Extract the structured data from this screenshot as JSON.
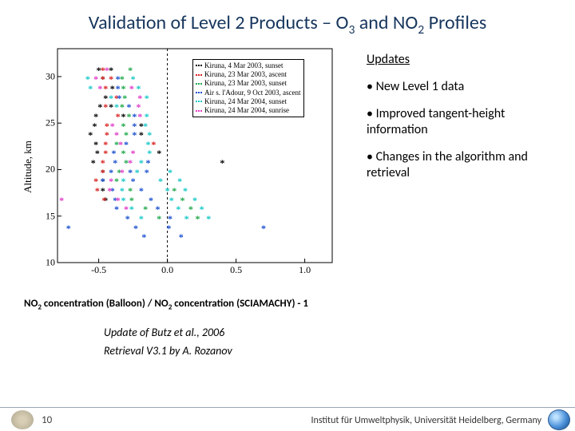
{
  "title_parts": {
    "a": "Validation of Level 2 Products – O",
    "b": "3",
    "c": " and NO",
    "d": "2",
    "e": " Profiles"
  },
  "chart": {
    "type": "scatter",
    "marker": "asterisk",
    "xlim": [
      -0.8,
      1.2
    ],
    "ylim": [
      10,
      33
    ],
    "xtick_values": [
      -0.5,
      0.0,
      0.5,
      1.0
    ],
    "xtick_labels": [
      "-0.5",
      "0.0",
      "0.5",
      "1.0"
    ],
    "ytick_values": [
      10,
      15,
      20,
      25,
      30
    ],
    "ytick_labels": [
      "10",
      "15",
      "20",
      "25",
      "30"
    ],
    "y_label": "Altitude, km",
    "background_color": "#ffffff",
    "axis_color": "#000000",
    "zero_line_color": "#000000",
    "zero_line_dash": "3,3",
    "legend": [
      {
        "colors": [
          "#000000",
          "#000000",
          "#000000"
        ],
        "label": "Kiruna, 4 Mar 2003, sunset"
      },
      {
        "colors": [
          "#d8211f",
          "#d8211f",
          "#d8211f"
        ],
        "label": "Kiruna, 23 Mar 2003, ascent"
      },
      {
        "colors": [
          "#1fa84a",
          "#1fa84a",
          "#1fa84a"
        ],
        "label": "Kiruna, 23 Mar 2003, sunset"
      },
      {
        "colors": [
          "#1a4fd0",
          "#1a4fd0",
          "#1a4fd0"
        ],
        "label": "Air s. l'Adour, 9 Oct 2003, ascent"
      },
      {
        "colors": [
          "#18c8c8",
          "#18c8c8",
          "#18c8c8"
        ],
        "label": "Kiruna, 24 Mar 2004, sunset"
      },
      {
        "colors": [
          "#e03bc8",
          "#e03bc8",
          "#e03bc8"
        ],
        "label": "Kiruna, 24 Mar 2004, sunrise"
      }
    ],
    "points": {
      "black": [
        {
          "x": -0.5,
          "y": 30.7
        },
        {
          "x": -0.41,
          "y": 30.7
        },
        {
          "x": -0.47,
          "y": 29.7
        },
        {
          "x": -0.4,
          "y": 28.7
        },
        {
          "x": -0.45,
          "y": 27.7
        },
        {
          "x": -0.49,
          "y": 26.7
        },
        {
          "x": -0.41,
          "y": 26.7
        },
        {
          "x": -0.52,
          "y": 25.7
        },
        {
          "x": -0.32,
          "y": 25.7
        },
        {
          "x": -0.53,
          "y": 24.7
        },
        {
          "x": -0.19,
          "y": 24.7
        },
        {
          "x": -0.56,
          "y": 23.7
        },
        {
          "x": -0.19,
          "y": 23.7
        },
        {
          "x": -0.52,
          "y": 22.7
        },
        {
          "x": -0.51,
          "y": 21.7
        },
        {
          "x": -0.06,
          "y": 21.7
        },
        {
          "x": -0.54,
          "y": 20.7
        },
        {
          "x": 0.4,
          "y": 20.7
        },
        {
          "x": -0.47,
          "y": 19.7
        },
        {
          "x": -0.47,
          "y": 18.7
        },
        {
          "x": -0.47,
          "y": 17.7
        },
        {
          "x": -0.45,
          "y": 16.7
        }
      ],
      "red": [
        {
          "x": -0.47,
          "y": 30.7
        },
        {
          "x": -0.47,
          "y": 29.7
        },
        {
          "x": -0.41,
          "y": 29.7
        },
        {
          "x": -0.45,
          "y": 28.7
        },
        {
          "x": -0.37,
          "y": 27.7
        },
        {
          "x": -0.45,
          "y": 26.7
        },
        {
          "x": -0.36,
          "y": 25.7
        },
        {
          "x": -0.44,
          "y": 24.7
        },
        {
          "x": -0.44,
          "y": 23.7
        },
        {
          "x": -0.45,
          "y": 22.7
        },
        {
          "x": -0.1,
          "y": 22.7
        },
        {
          "x": -0.45,
          "y": 21.7
        },
        {
          "x": -0.47,
          "y": 20.7
        },
        {
          "x": -0.47,
          "y": 19.7
        },
        {
          "x": -0.52,
          "y": 18.7
        },
        {
          "x": -0.51,
          "y": 17.7
        },
        {
          "x": -0.46,
          "y": 16.7
        }
      ],
      "green": [
        {
          "x": -0.27,
          "y": 30.7
        },
        {
          "x": -0.33,
          "y": 29.7
        },
        {
          "x": -0.32,
          "y": 28.7
        },
        {
          "x": -0.31,
          "y": 27.7
        },
        {
          "x": -0.33,
          "y": 26.7
        },
        {
          "x": -0.28,
          "y": 25.7
        },
        {
          "x": -0.32,
          "y": 24.7
        },
        {
          "x": -0.3,
          "y": 23.7
        },
        {
          "x": -0.37,
          "y": 22.7
        },
        {
          "x": -0.32,
          "y": 21.7
        },
        {
          "x": -0.3,
          "y": 20.7
        },
        {
          "x": -0.35,
          "y": 19.7
        },
        {
          "x": -0.37,
          "y": 18.7
        },
        {
          "x": -0.27,
          "y": 17.7
        },
        {
          "x": 0.05,
          "y": 17.7
        },
        {
          "x": -0.26,
          "y": 16.7
        },
        {
          "x": 0.11,
          "y": 16.7
        },
        {
          "x": -0.16,
          "y": 15.7
        },
        {
          "x": 0.17,
          "y": 15.7
        },
        {
          "x": -0.06,
          "y": 14.7
        },
        {
          "x": 0.22,
          "y": 14.7
        }
      ],
      "blue": [
        {
          "x": -0.36,
          "y": 29.7
        },
        {
          "x": -0.36,
          "y": 28.7
        },
        {
          "x": -0.35,
          "y": 27.7
        },
        {
          "x": -0.28,
          "y": 26.7
        },
        {
          "x": -0.24,
          "y": 25.7
        },
        {
          "x": -0.24,
          "y": 24.7
        },
        {
          "x": -0.24,
          "y": 23.7
        },
        {
          "x": -0.3,
          "y": 22.7
        },
        {
          "x": -0.39,
          "y": 21.7
        },
        {
          "x": -0.38,
          "y": 20.7
        },
        {
          "x": -0.14,
          "y": 20.7
        },
        {
          "x": -0.41,
          "y": 19.7
        },
        {
          "x": -0.27,
          "y": 19.7
        },
        {
          "x": -0.15,
          "y": 19.7
        },
        {
          "x": -0.47,
          "y": 18.7
        },
        {
          "x": -0.25,
          "y": 18.7
        },
        {
          "x": -0.4,
          "y": 17.7
        },
        {
          "x": -0.19,
          "y": 17.7
        },
        {
          "x": -0.38,
          "y": 16.7
        },
        {
          "x": -0.12,
          "y": 16.7
        },
        {
          "x": -0.37,
          "y": 15.7
        },
        {
          "x": -0.07,
          "y": 15.7
        },
        {
          "x": -0.29,
          "y": 14.7
        },
        {
          "x": 0.02,
          "y": 14.7
        },
        {
          "x": -0.72,
          "y": 13.7
        },
        {
          "x": -0.23,
          "y": 13.7
        },
        {
          "x": 0.01,
          "y": 13.7
        },
        {
          "x": 0.7,
          "y": 13.7
        },
        {
          "x": -0.17,
          "y": 12.7
        },
        {
          "x": 0.1,
          "y": 12.7
        }
      ],
      "cyan": [
        {
          "x": -0.58,
          "y": 29.7
        },
        {
          "x": -0.25,
          "y": 29.7
        },
        {
          "x": -0.56,
          "y": 28.7
        },
        {
          "x": -0.21,
          "y": 28.7
        },
        {
          "x": -0.41,
          "y": 27.7
        },
        {
          "x": -0.15,
          "y": 27.7
        },
        {
          "x": -0.37,
          "y": 26.7
        },
        {
          "x": -0.15,
          "y": 25.7
        },
        {
          "x": -0.16,
          "y": 24.7
        },
        {
          "x": -0.13,
          "y": 23.7
        },
        {
          "x": -0.14,
          "y": 22.7
        },
        {
          "x": -0.13,
          "y": 21.7
        },
        {
          "x": -0.19,
          "y": 20.7
        },
        {
          "x": -0.22,
          "y": 19.7
        },
        {
          "x": 0.02,
          "y": 19.7
        },
        {
          "x": -0.32,
          "y": 18.7
        },
        {
          "x": -0.05,
          "y": 18.7
        },
        {
          "x": 0.09,
          "y": 18.7
        },
        {
          "x": -0.33,
          "y": 17.7
        },
        {
          "x": 0.0,
          "y": 17.7
        },
        {
          "x": 0.13,
          "y": 17.7
        },
        {
          "x": -0.32,
          "y": 16.7
        },
        {
          "x": 0.03,
          "y": 16.7
        },
        {
          "x": 0.2,
          "y": 16.7
        },
        {
          "x": -0.26,
          "y": 15.7
        },
        {
          "x": 0.08,
          "y": 15.7
        },
        {
          "x": 0.25,
          "y": 15.7
        },
        {
          "x": -0.19,
          "y": 14.7
        },
        {
          "x": 0.14,
          "y": 14.7
        },
        {
          "x": 0.3,
          "y": 14.7
        }
      ],
      "magenta": [
        {
          "x": -0.44,
          "y": 30.7
        },
        {
          "x": -0.52,
          "y": 29.7
        },
        {
          "x": -0.49,
          "y": 28.7
        },
        {
          "x": -0.26,
          "y": 28.7
        },
        {
          "x": -0.2,
          "y": 27.7
        },
        {
          "x": -0.21,
          "y": 26.7
        },
        {
          "x": -0.2,
          "y": 25.7
        },
        {
          "x": -0.4,
          "y": 24.7
        },
        {
          "x": -0.37,
          "y": 23.7
        },
        {
          "x": -0.34,
          "y": 22.7
        },
        {
          "x": -0.25,
          "y": 21.7
        },
        {
          "x": -0.27,
          "y": 20.7
        },
        {
          "x": -0.33,
          "y": 19.7
        },
        {
          "x": -0.41,
          "y": 18.7
        },
        {
          "x": -0.42,
          "y": 17.7
        },
        {
          "x": -0.77,
          "y": 16.7
        },
        {
          "x": -0.36,
          "y": 16.7
        },
        {
          "x": -0.3,
          "y": 15.7
        }
      ]
    },
    "series_colors": {
      "black": "#000000",
      "red": "#d8211f",
      "green": "#1fa84a",
      "blue": "#1a4fd0",
      "cyan": "#18c8c8",
      "magenta": "#e03bc8"
    }
  },
  "updates": {
    "heading": "Updates",
    "b1": "• New Level 1 data",
    "b2": "• Improved tangent-height information",
    "b3": "• Changes in the algorithm and retrieval"
  },
  "caption1": {
    "a": "NO",
    "b": "2",
    "c": " concentration (Balloon) / NO",
    "d": "2",
    "e": " concentration (SCIAMACHY) - 1"
  },
  "caption2": "Update of Butz et al., 2006",
  "caption3": "Retrieval V3.1 by A. Rozanov",
  "footer": {
    "page": "10",
    "affil": "Institut für Umweltphysik, Universität Heidelberg, Germany"
  }
}
